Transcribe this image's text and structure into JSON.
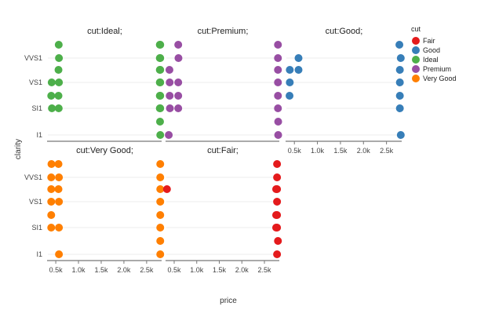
{
  "chart_data": {
    "type": "scatter",
    "xlabel": "price",
    "ylabel": "clarity",
    "x_ticks": [
      500,
      1000,
      1500,
      2000,
      2500
    ],
    "x_tick_labels": [
      "0.5k",
      "1.0k",
      "1.5k",
      "2.0k",
      "2.5k"
    ],
    "xlim": [
      326,
      2830
    ],
    "y_categories": [
      "I1",
      "SI2",
      "SI1",
      "VS2",
      "VS1",
      "VVS2",
      "VVS1",
      "IF"
    ],
    "y_tick_labels": [
      "I1",
      "SI1",
      "VS1",
      "VVS1"
    ],
    "legend": {
      "title": "cut",
      "position": "top-right",
      "entries": [
        {
          "name": "Fair",
          "color": "#e41a1c"
        },
        {
          "name": "Good",
          "color": "#377eb8"
        },
        {
          "name": "Ideal",
          "color": "#4daf4a"
        },
        {
          "name": "Premium",
          "color": "#984ea3"
        },
        {
          "name": "Very Good",
          "color": "#ff7f00"
        }
      ]
    },
    "panels": [
      {
        "title": "cut:Ideal;",
        "cut": "Ideal",
        "color": "#4daf4a",
        "points": [
          {
            "x": 565,
            "y": "IF"
          },
          {
            "x": 2800,
            "y": "IF"
          },
          {
            "x": 2790,
            "y": "IF"
          },
          {
            "x": 570,
            "y": "VVS1"
          },
          {
            "x": 2800,
            "y": "VVS1"
          },
          {
            "x": 2790,
            "y": "VVS1"
          },
          {
            "x": 560,
            "y": "VVS2"
          },
          {
            "x": 2800,
            "y": "VVS2"
          },
          {
            "x": 2790,
            "y": "VVS2"
          },
          {
            "x": 410,
            "y": "VS1"
          },
          {
            "x": 570,
            "y": "VS1"
          },
          {
            "x": 2800,
            "y": "VS1"
          },
          {
            "x": 2790,
            "y": "VS1"
          },
          {
            "x": 400,
            "y": "VS2"
          },
          {
            "x": 560,
            "y": "VS2"
          },
          {
            "x": 2800,
            "y": "VS2"
          },
          {
            "x": 2790,
            "y": "VS2"
          },
          {
            "x": 415,
            "y": "SI1"
          },
          {
            "x": 565,
            "y": "SI1"
          },
          {
            "x": 2800,
            "y": "SI1"
          },
          {
            "x": 2790,
            "y": "SI1"
          },
          {
            "x": 2795,
            "y": "SI2"
          },
          {
            "x": 2800,
            "y": "I1"
          }
        ]
      },
      {
        "title": "cut:Premium;",
        "cut": "Premium",
        "color": "#984ea3",
        "points": [
          {
            "x": 590,
            "y": "IF"
          },
          {
            "x": 2800,
            "y": "IF"
          },
          {
            "x": 595,
            "y": "VVS1"
          },
          {
            "x": 2800,
            "y": "VVS1"
          },
          {
            "x": 395,
            "y": "VVS2"
          },
          {
            "x": 2800,
            "y": "VVS2"
          },
          {
            "x": 400,
            "y": "VS1"
          },
          {
            "x": 590,
            "y": "VS1"
          },
          {
            "x": 2800,
            "y": "VS1"
          },
          {
            "x": 400,
            "y": "VS2"
          },
          {
            "x": 590,
            "y": "VS2"
          },
          {
            "x": 2800,
            "y": "VS2"
          },
          {
            "x": 405,
            "y": "SI1"
          },
          {
            "x": 590,
            "y": "SI1"
          },
          {
            "x": 2800,
            "y": "SI1"
          },
          {
            "x": 2805,
            "y": "SI2"
          },
          {
            "x": 380,
            "y": "I1"
          },
          {
            "x": 2805,
            "y": "I1"
          }
        ]
      },
      {
        "title": "cut:Good;",
        "cut": "Good",
        "color": "#377eb8",
        "points": [
          {
            "x": 2780,
            "y": "IF"
          },
          {
            "x": 590,
            "y": "VVS1"
          },
          {
            "x": 2810,
            "y": "VVS1"
          },
          {
            "x": 400,
            "y": "VVS2"
          },
          {
            "x": 590,
            "y": "VVS2"
          },
          {
            "x": 2790,
            "y": "VVS2"
          },
          {
            "x": 400,
            "y": "VS1"
          },
          {
            "x": 2790,
            "y": "VS1"
          },
          {
            "x": 395,
            "y": "VS2"
          },
          {
            "x": 2790,
            "y": "VS2"
          },
          {
            "x": 2790,
            "y": "SI1"
          },
          {
            "x": 2810,
            "y": "I1"
          }
        ]
      },
      {
        "title": "cut:Very Good;",
        "cut": "Very Good",
        "color": "#ff7f00",
        "points": [
          {
            "x": 405,
            "y": "IF"
          },
          {
            "x": 560,
            "y": "IF"
          },
          {
            "x": 2800,
            "y": "IF"
          },
          {
            "x": 400,
            "y": "VVS1"
          },
          {
            "x": 570,
            "y": "VVS1"
          },
          {
            "x": 2800,
            "y": "VVS1"
          },
          {
            "x": 400,
            "y": "VVS2"
          },
          {
            "x": 560,
            "y": "VVS2"
          },
          {
            "x": 2800,
            "y": "VVS2"
          },
          {
            "x": 400,
            "y": "VS1"
          },
          {
            "x": 570,
            "y": "VS1"
          },
          {
            "x": 2800,
            "y": "VS1"
          },
          {
            "x": 400,
            "y": "VS2"
          },
          {
            "x": 2800,
            "y": "VS2"
          },
          {
            "x": 400,
            "y": "SI1"
          },
          {
            "x": 570,
            "y": "SI1"
          },
          {
            "x": 2800,
            "y": "SI1"
          },
          {
            "x": 2800,
            "y": "SI2"
          },
          {
            "x": 570,
            "y": "I1"
          },
          {
            "x": 2800,
            "y": "I1"
          }
        ]
      },
      {
        "title": "cut:Fair;",
        "cut": "Fair",
        "color": "#e41a1c",
        "points": [
          {
            "x": 2780,
            "y": "IF"
          },
          {
            "x": 2780,
            "y": "VVS1"
          },
          {
            "x": 340,
            "y": "VVS2"
          },
          {
            "x": 2760,
            "y": "VVS2"
          },
          {
            "x": 2780,
            "y": "VVS2"
          },
          {
            "x": 2780,
            "y": "VS1"
          },
          {
            "x": 2760,
            "y": "VS2"
          },
          {
            "x": 2780,
            "y": "VS2"
          },
          {
            "x": 2760,
            "y": "SI1"
          },
          {
            "x": 2780,
            "y": "SI1"
          },
          {
            "x": 2800,
            "y": "SI2"
          },
          {
            "x": 2780,
            "y": "I1"
          }
        ]
      }
    ]
  }
}
